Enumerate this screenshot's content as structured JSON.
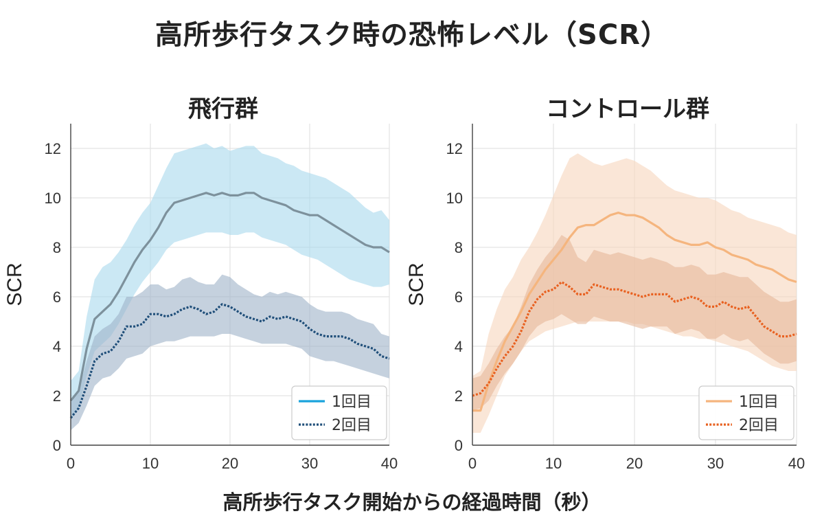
{
  "title": "高所歩行タスク時の恐怖レベル（SCR）",
  "xlabel": "高所歩行タスク開始からの経過時間（秒）",
  "chart_data": [
    {
      "type": "line",
      "title": "飛行群",
      "xlabel": "高所歩行タスク開始からの経過時間（秒）",
      "ylabel": "SCR",
      "xlim": [
        0,
        40
      ],
      "ylim": [
        0,
        13
      ],
      "xticks": [
        0,
        10,
        20,
        30,
        40
      ],
      "yticks": [
        0,
        2,
        4,
        6,
        8,
        10,
        12
      ],
      "grid": true,
      "legend_position": "bottom-right",
      "x": [
        0,
        1,
        2,
        3,
        4,
        5,
        6,
        7,
        8,
        9,
        10,
        11,
        12,
        13,
        14,
        15,
        16,
        17,
        18,
        19,
        20,
        21,
        22,
        23,
        24,
        25,
        26,
        27,
        28,
        29,
        30,
        31,
        32,
        33,
        34,
        35,
        36,
        37,
        38,
        39,
        40
      ],
      "series": [
        {
          "name": "1回目",
          "style": "solid",
          "line_color": "#7d919c",
          "legend_color": "#1aa3dc",
          "band_color": "#a9d8ec",
          "values": [
            1.8,
            2.2,
            3.9,
            5.1,
            5.4,
            5.7,
            6.2,
            6.8,
            7.4,
            7.9,
            8.3,
            8.8,
            9.4,
            9.8,
            9.9,
            10.0,
            10.1,
            10.2,
            10.1,
            10.2,
            10.1,
            10.1,
            10.2,
            10.2,
            10.0,
            9.9,
            9.8,
            9.7,
            9.5,
            9.4,
            9.3,
            9.3,
            9.1,
            8.9,
            8.7,
            8.5,
            8.3,
            8.1,
            8.0,
            8.0,
            7.8
          ],
          "lower": [
            1.0,
            1.5,
            2.8,
            3.8,
            4.1,
            4.4,
            4.9,
            5.5,
            6.1,
            6.6,
            7.0,
            7.4,
            7.9,
            8.2,
            8.3,
            8.4,
            8.5,
            8.6,
            8.6,
            8.6,
            8.5,
            8.5,
            8.6,
            8.6,
            8.4,
            8.3,
            8.2,
            8.1,
            7.9,
            7.7,
            7.6,
            7.5,
            7.3,
            7.1,
            6.9,
            6.7,
            6.6,
            6.5,
            6.4,
            6.4,
            6.5
          ],
          "upper": [
            2.6,
            3.0,
            5.2,
            6.7,
            7.2,
            7.4,
            7.8,
            8.3,
            8.9,
            9.4,
            9.8,
            10.5,
            11.2,
            11.8,
            11.9,
            12.0,
            12.1,
            12.2,
            12.0,
            12.1,
            11.9,
            12.0,
            12.1,
            12.1,
            11.8,
            11.7,
            11.6,
            11.4,
            11.3,
            11.1,
            11.0,
            10.9,
            10.8,
            10.6,
            10.4,
            10.2,
            9.9,
            9.6,
            9.4,
            9.5,
            9.1
          ]
        },
        {
          "name": "2回目",
          "style": "dotted",
          "line_color": "#1f4e79",
          "legend_color": "#1f4e79",
          "band_color": "#9fb3c8",
          "values": [
            1.1,
            1.5,
            2.4,
            3.4,
            3.7,
            3.8,
            4.2,
            4.8,
            4.8,
            4.9,
            5.3,
            5.3,
            5.2,
            5.3,
            5.5,
            5.6,
            5.5,
            5.3,
            5.4,
            5.7,
            5.6,
            5.4,
            5.2,
            5.1,
            5.0,
            5.2,
            5.1,
            5.2,
            5.1,
            5.0,
            4.7,
            4.5,
            4.4,
            4.4,
            4.4,
            4.3,
            4.1,
            4.0,
            3.9,
            3.6,
            3.5
          ],
          "lower": [
            0.6,
            0.9,
            1.6,
            2.4,
            2.7,
            2.8,
            3.1,
            3.5,
            3.6,
            3.7,
            4.0,
            4.1,
            4.2,
            4.2,
            4.3,
            4.4,
            4.4,
            4.4,
            4.4,
            4.5,
            4.5,
            4.4,
            4.3,
            4.2,
            4.1,
            4.1,
            4.1,
            4.1,
            4.0,
            3.9,
            3.6,
            3.5,
            3.4,
            3.4,
            3.3,
            3.2,
            3.1,
            3.0,
            2.9,
            2.8,
            2.7
          ],
          "upper": [
            1.7,
            2.2,
            3.4,
            4.4,
            4.7,
            4.9,
            5.3,
            6.0,
            6.0,
            6.2,
            6.5,
            6.5,
            6.3,
            6.4,
            6.7,
            6.8,
            6.6,
            6.5,
            6.5,
            6.9,
            6.8,
            6.5,
            6.3,
            6.1,
            6.0,
            6.2,
            6.1,
            6.2,
            6.1,
            6.0,
            5.7,
            5.5,
            5.4,
            5.4,
            5.4,
            5.3,
            5.1,
            5.0,
            4.9,
            4.5,
            4.4
          ]
        }
      ]
    },
    {
      "type": "line",
      "title": "コントロール群",
      "xlabel": "高所歩行タスク開始からの経過時間（秒）",
      "ylabel": "SCR",
      "xlim": [
        0,
        40
      ],
      "ylim": [
        0,
        13
      ],
      "xticks": [
        0,
        10,
        20,
        30,
        40
      ],
      "yticks": [
        0,
        2,
        4,
        6,
        8,
        10,
        12
      ],
      "grid": true,
      "legend_position": "bottom-right",
      "x": [
        0,
        1,
        2,
        3,
        4,
        5,
        6,
        7,
        8,
        9,
        10,
        11,
        12,
        13,
        14,
        15,
        16,
        17,
        18,
        19,
        20,
        21,
        22,
        23,
        24,
        25,
        26,
        27,
        28,
        29,
        30,
        31,
        32,
        33,
        34,
        35,
        36,
        37,
        38,
        39,
        40
      ],
      "series": [
        {
          "name": "1回目",
          "style": "solid",
          "line_color": "#f5b57e",
          "legend_color": "#f5b57e",
          "band_color": "#f7d6bc",
          "values": [
            1.4,
            1.4,
            2.5,
            3.4,
            4.2,
            4.8,
            5.4,
            6.1,
            6.6,
            7.1,
            7.5,
            7.9,
            8.4,
            8.8,
            8.9,
            8.9,
            9.1,
            9.3,
            9.4,
            9.3,
            9.3,
            9.2,
            9.0,
            8.8,
            8.5,
            8.3,
            8.2,
            8.1,
            8.1,
            8.2,
            8.0,
            7.9,
            7.7,
            7.6,
            7.5,
            7.3,
            7.2,
            7.1,
            6.9,
            6.7,
            6.6
          ],
          "lower": [
            0.5,
            0.5,
            1.2,
            2.0,
            2.8,
            3.3,
            3.8,
            4.2,
            4.4,
            4.6,
            4.7,
            4.8,
            4.9,
            5.0,
            5.0,
            5.0,
            5.0,
            5.0,
            5.0,
            5.0,
            4.9,
            4.9,
            4.8,
            4.7,
            4.6,
            4.5,
            4.4,
            4.4,
            4.3,
            4.3,
            4.2,
            4.1,
            4.0,
            3.9,
            3.8,
            3.6,
            3.4,
            3.2,
            3.1,
            3.0,
            3.0
          ],
          "upper": [
            2.8,
            3.0,
            4.5,
            5.5,
            6.3,
            6.8,
            7.5,
            8.0,
            8.6,
            9.3,
            10.1,
            10.9,
            11.6,
            11.8,
            11.6,
            11.4,
            11.3,
            11.4,
            11.5,
            11.6,
            11.5,
            11.3,
            11.1,
            10.8,
            10.5,
            10.3,
            10.2,
            10.1,
            10.0,
            10.0,
            9.9,
            9.7,
            9.5,
            9.4,
            9.2,
            9.1,
            9.0,
            8.9,
            8.8,
            8.6,
            8.5
          ]
        },
        {
          "name": "2回目",
          "style": "dotted",
          "line_color": "#e8601f",
          "legend_color": "#e8601f",
          "band_color": "#e6b899",
          "values": [
            2.0,
            2.1,
            2.5,
            3.1,
            3.6,
            4.0,
            4.6,
            5.4,
            5.9,
            6.2,
            6.3,
            6.6,
            6.4,
            6.1,
            6.1,
            6.5,
            6.4,
            6.3,
            6.3,
            6.2,
            6.1,
            6.0,
            6.1,
            6.1,
            6.1,
            5.8,
            5.9,
            6.0,
            5.9,
            5.6,
            5.6,
            5.8,
            5.6,
            5.5,
            5.6,
            5.2,
            4.8,
            4.6,
            4.4,
            4.4,
            4.5
          ],
          "lower": [
            1.4,
            1.5,
            1.8,
            2.4,
            2.9,
            3.3,
            3.8,
            4.4,
            4.8,
            5.0,
            5.1,
            5.3,
            5.1,
            4.9,
            4.9,
            5.2,
            5.1,
            5.0,
            5.0,
            4.9,
            4.8,
            4.7,
            4.8,
            4.8,
            4.8,
            4.5,
            4.6,
            4.7,
            4.6,
            4.3,
            4.3,
            4.5,
            4.3,
            4.2,
            4.3,
            4.0,
            3.7,
            3.5,
            3.3,
            3.3,
            3.4
          ],
          "upper": [
            2.7,
            2.8,
            3.3,
            3.9,
            4.4,
            4.8,
            5.6,
            6.5,
            7.1,
            7.6,
            8.0,
            8.5,
            8.3,
            7.6,
            7.4,
            7.9,
            7.8,
            7.7,
            7.8,
            7.7,
            7.6,
            7.5,
            7.6,
            7.5,
            7.4,
            7.2,
            7.2,
            7.3,
            7.2,
            6.9,
            6.9,
            7.0,
            6.9,
            6.8,
            6.8,
            6.5,
            6.2,
            6.0,
            5.8,
            5.8,
            5.9
          ]
        }
      ]
    }
  ]
}
